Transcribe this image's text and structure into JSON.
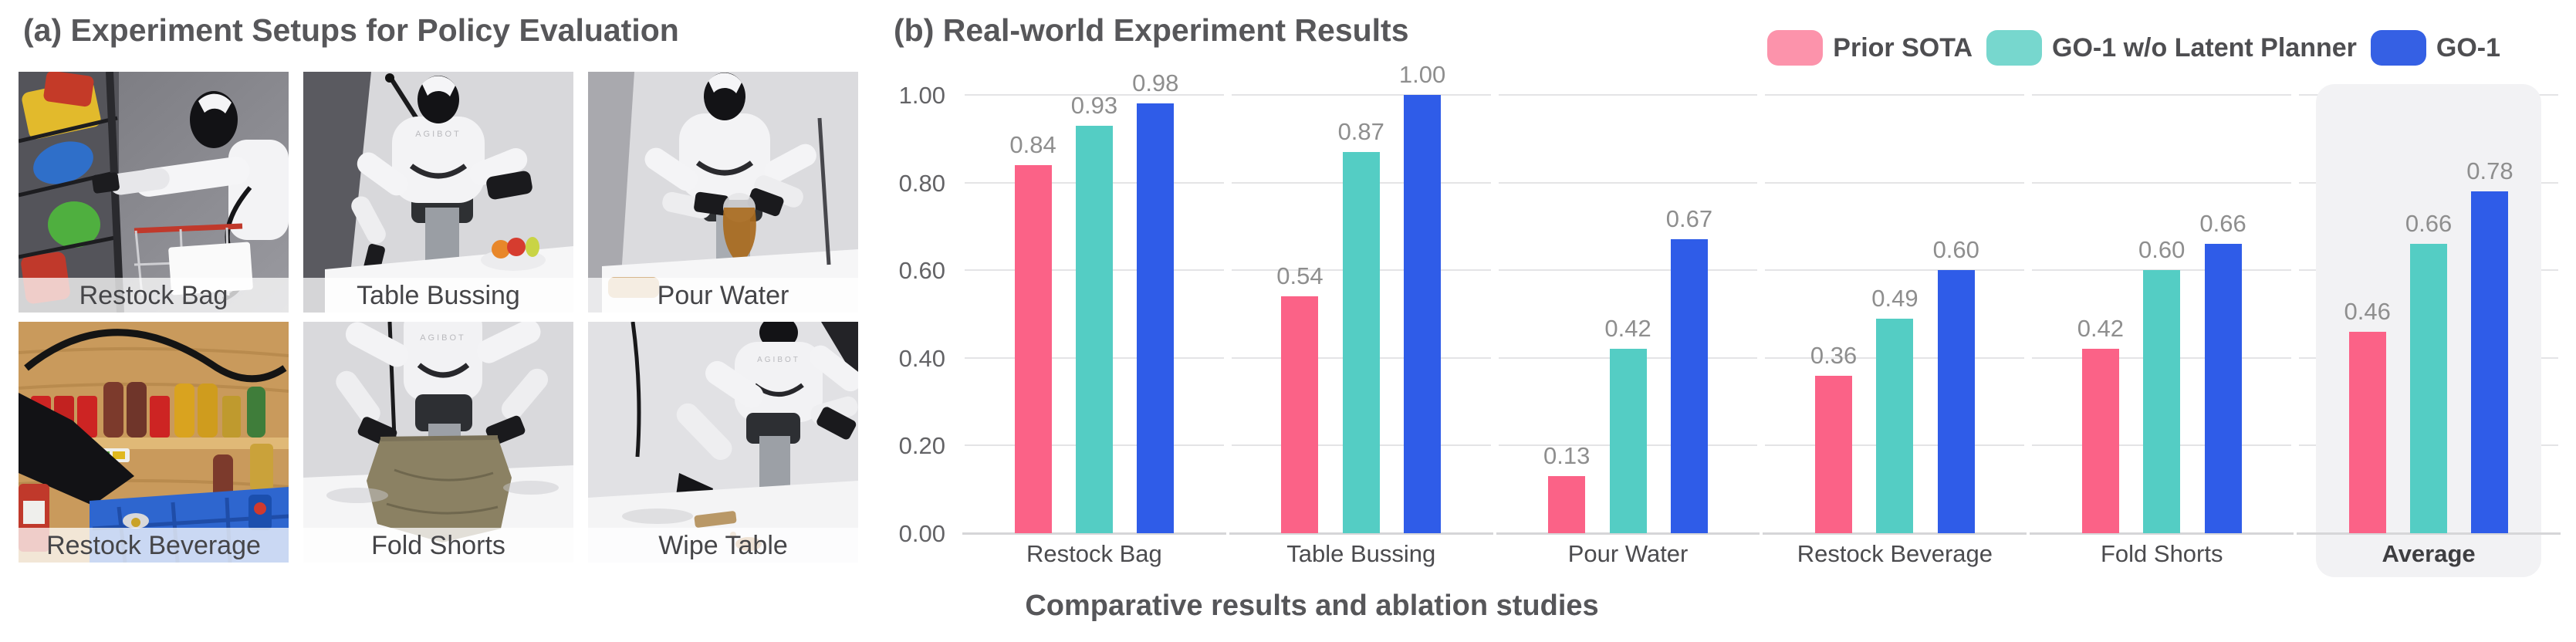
{
  "panel_a": {
    "title": "(a) Experiment Setups for Policy Evaluation",
    "robot_brand": "AGIBOT",
    "setups": [
      {
        "label": "Restock Bag"
      },
      {
        "label": "Table Bussing"
      },
      {
        "label": "Pour Water"
      },
      {
        "label": "Restock Beverage"
      },
      {
        "label": "Fold Shorts"
      },
      {
        "label": "Wipe Table"
      }
    ]
  },
  "panel_b": {
    "title": "(b) Real-world Experiment Results",
    "caption": "Comparative results and ablation studies",
    "legend": [
      {
        "name": "Prior SOTA",
        "swatch_color": "#FC93AB"
      },
      {
        "name": "GO-1 w/o Latent Planner",
        "swatch_color": "#77D7CE"
      },
      {
        "name": "GO-1",
        "swatch_color": "#3560E4"
      }
    ]
  },
  "chart_data": {
    "type": "bar",
    "title": "(b) Real-world Experiment Results",
    "xlabel": "Comparative results and ablation studies",
    "ylabel": "",
    "categories": [
      "Restock Bag",
      "Table Bussing",
      "Pour Water",
      "Restock Beverage",
      "Fold Shorts",
      "Average"
    ],
    "series": [
      {
        "name": "Prior SOTA",
        "color": "#FB6287",
        "values": [
          0.84,
          0.54,
          0.13,
          0.36,
          0.42,
          0.46
        ]
      },
      {
        "name": "GO-1 w/o Latent Planner",
        "color": "#54CDC4",
        "values": [
          0.93,
          0.87,
          0.42,
          0.49,
          0.6,
          0.66
        ]
      },
      {
        "name": "GO-1",
        "color": "#2F5CE8",
        "values": [
          0.98,
          1.0,
          0.67,
          0.6,
          0.66,
          0.78
        ]
      }
    ],
    "ylim": [
      0.0,
      1.0
    ],
    "yticks": [
      "0.00",
      "0.20",
      "0.40",
      "0.60",
      "0.80",
      "1.00"
    ],
    "grid": true,
    "legend_position": "top-right",
    "highlight_category": "Average",
    "value_labels": true
  }
}
